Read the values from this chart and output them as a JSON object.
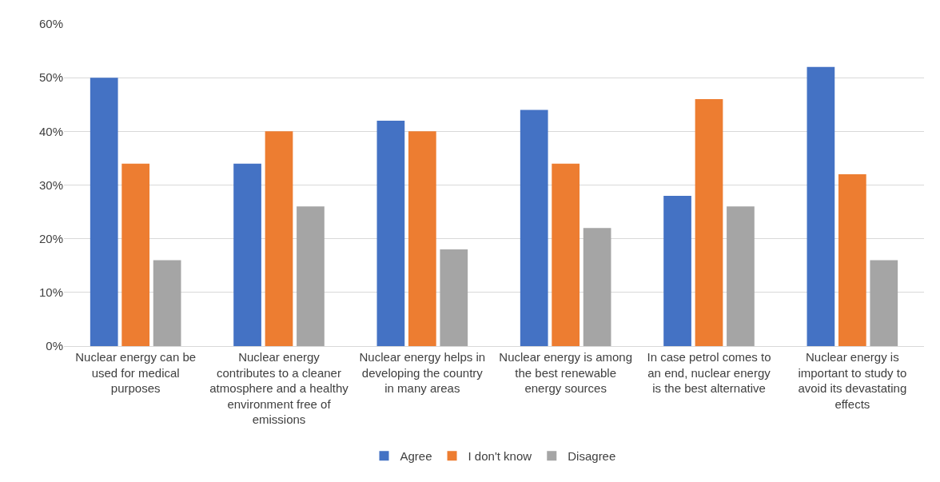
{
  "chart_data": {
    "type": "bar",
    "categories": [
      "Nuclear energy can be used for medical purposes",
      "Nuclear energy contributes to a cleaner atmosphere and a healthy environment free of emissions",
      "Nuclear energy helps in developing the country in many areas",
      "Nuclear energy is among the best renewable energy sources",
      "In case petrol comes to an end, nuclear energy is the best alternative",
      "Nuclear energy is important to study to avoid its devastating effects"
    ],
    "series": [
      {
        "name": "Agree",
        "color": "#4472c4",
        "values": [
          50,
          34,
          42,
          44,
          28,
          52
        ]
      },
      {
        "name": "I don't know",
        "color": "#ed7d31",
        "values": [
          34,
          40,
          40,
          34,
          46,
          32
        ]
      },
      {
        "name": "Disagree",
        "color": "#a5a5a5",
        "values": [
          16,
          26,
          18,
          22,
          26,
          16
        ]
      }
    ],
    "ylim": [
      0,
      60
    ],
    "yticks": [
      {
        "value": 0,
        "label": "0%"
      },
      {
        "value": 10,
        "label": "10%"
      },
      {
        "value": 20,
        "label": "20%"
      },
      {
        "value": 30,
        "label": "30%"
      },
      {
        "value": 40,
        "label": "40%"
      },
      {
        "value": 50,
        "label": "50%"
      },
      {
        "value": 60,
        "label": "60%"
      }
    ],
    "grid": "y",
    "legend": "bottom"
  }
}
